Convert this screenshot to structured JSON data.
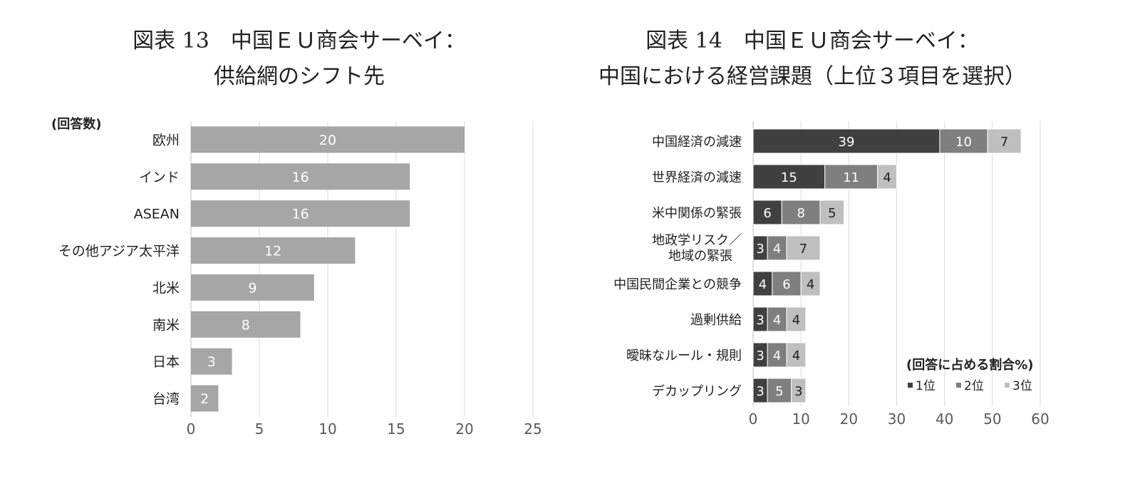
{
  "chart_data": [
    {
      "type": "bar",
      "orientation": "horizontal",
      "title": "図表 13　中国ＥＵ商会サーベイ：",
      "subtitle": "供給網のシフト先",
      "unit_label": "(回答数)",
      "categories": [
        "欧州",
        "インド",
        "ASEAN",
        "その他アジア太平洋",
        "北米",
        "南米",
        "日本",
        "台湾"
      ],
      "values": [
        20,
        16,
        16,
        12,
        9,
        8,
        3,
        2
      ],
      "xlim": [
        0,
        25
      ],
      "xticks": [
        "0",
        "5",
        "10",
        "15",
        "20",
        "25"
      ],
      "grid": true,
      "color": "#a6a6a6"
    },
    {
      "type": "bar",
      "orientation": "horizontal",
      "stacked": true,
      "title": "図表 14　中国ＥＵ商会サーベイ：",
      "subtitle": "中国における経営課題（上位３項目を選択）",
      "legend_title": "(回答に占める割合%)",
      "legend_position": "bottom-right",
      "categories": [
        "中国経済の減速",
        "世界経済の減速",
        "米中関係の緊張",
        "地政学リスク／\n地域の緊張",
        "中国民間企業との競争",
        "過剰供給",
        "曖昧なルール・規則",
        "デカップリング"
      ],
      "series": [
        {
          "name": "1位",
          "color": "#404040",
          "values": [
            39,
            15,
            6,
            3,
            4,
            3,
            3,
            3
          ]
        },
        {
          "name": "2位",
          "color": "#7f7f7f",
          "values": [
            10,
            11,
            8,
            4,
            6,
            4,
            4,
            5
          ]
        },
        {
          "name": "3位",
          "color": "#bfbfbf",
          "values": [
            7,
            4,
            5,
            7,
            4,
            4,
            4,
            3
          ]
        }
      ],
      "xlim": [
        0,
        60
      ],
      "xticks": [
        "0",
        "10",
        "20",
        "30",
        "40",
        "50",
        "60"
      ],
      "grid": true
    }
  ]
}
